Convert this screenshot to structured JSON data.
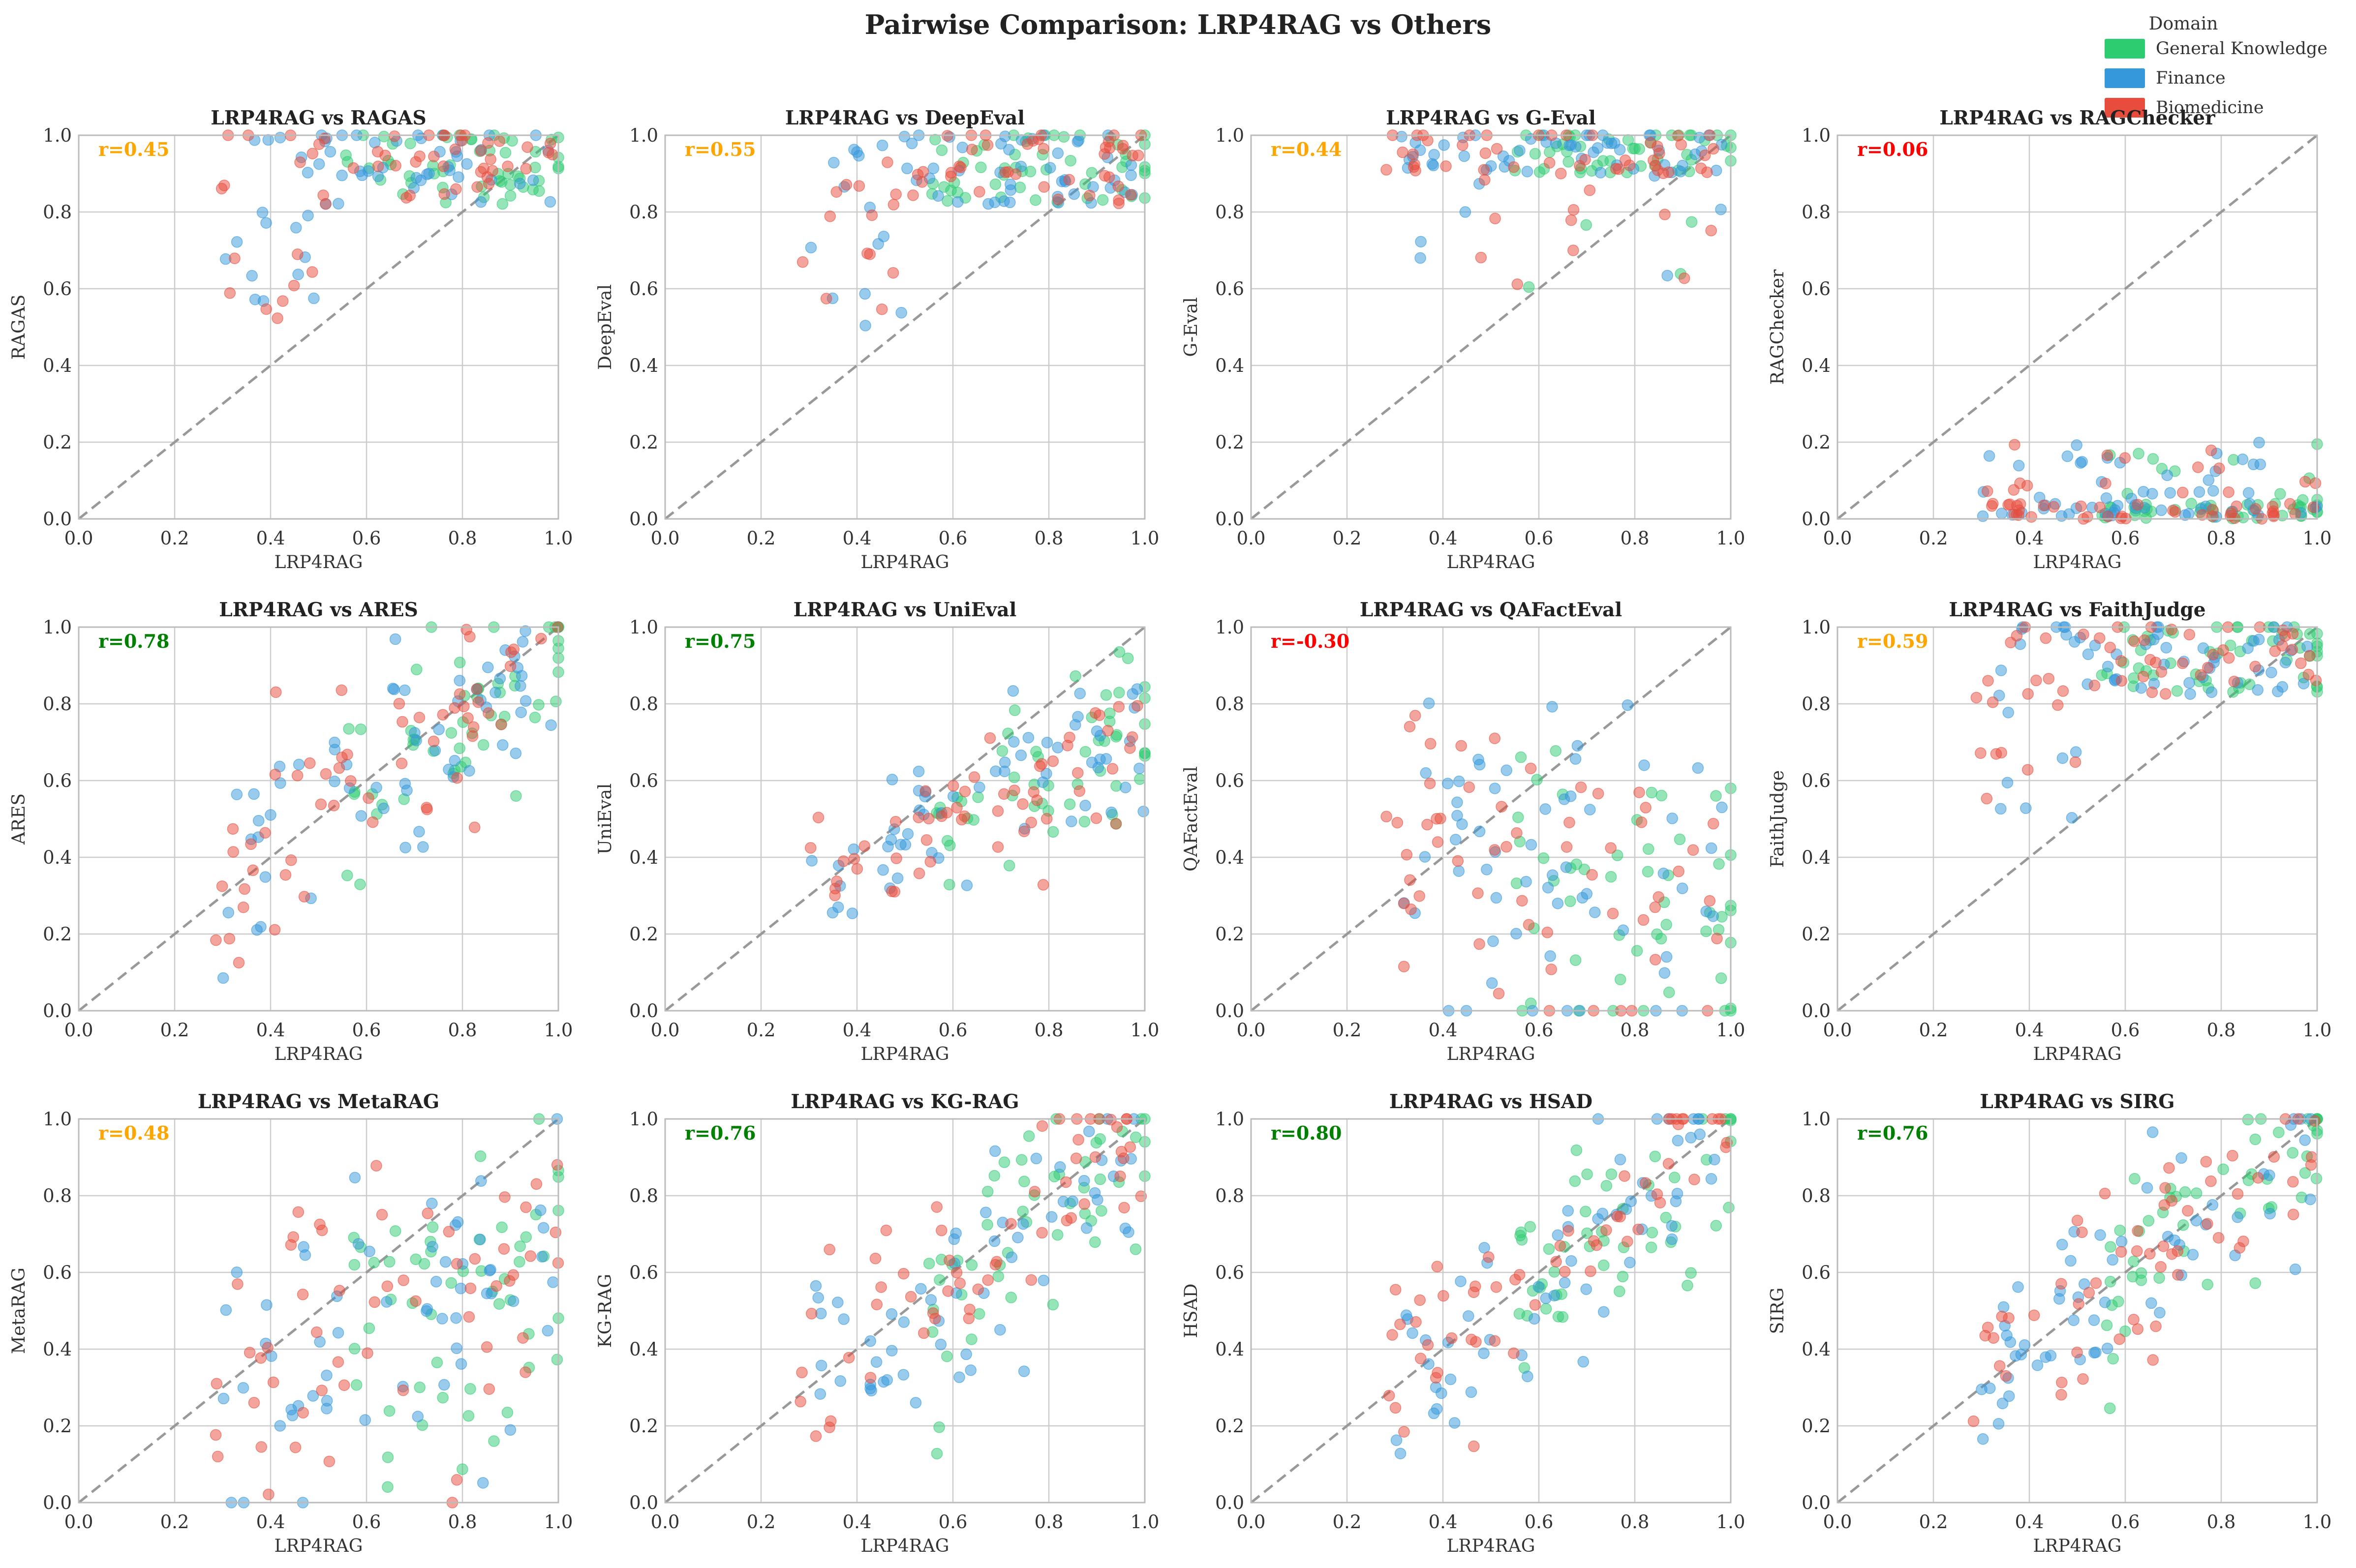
{
  "title": "Pairwise Comparison: LRP4RAG vs Others",
  "legend": {
    "title": "Domain",
    "items": [
      {
        "label": "General Knowledge",
        "color": "#2ecc71"
      },
      {
        "label": "Finance",
        "color": "#3498db"
      },
      {
        "label": "Biomedicine",
        "color": "#e74c3c"
      }
    ]
  },
  "colors": {
    "diagonal": "#999999",
    "grid": "#cccccc",
    "corr_high": "#008000",
    "corr_mid": "#ffa500",
    "corr_low": "#ff0000"
  },
  "chart_data": [
    {
      "type": "scatter",
      "title": "LRP4RAG vs RAGAS",
      "xlabel": "LRP4RAG",
      "ylabel": "RAGAS",
      "r_label": "r=0.45",
      "r": 0.45,
      "xlim": [
        0,
        1
      ],
      "ylim": [
        0,
        1
      ],
      "xticks": [
        "0.0",
        "0.2",
        "0.4",
        "0.6",
        "0.8",
        "1.0"
      ],
      "yticks": [
        "0.0",
        "0.2",
        "0.4",
        "0.6",
        "0.8",
        "1.0"
      ],
      "pattern": "high"
    },
    {
      "type": "scatter",
      "title": "LRP4RAG vs DeepEval",
      "xlabel": "LRP4RAG",
      "ylabel": "DeepEval",
      "r_label": "r=0.55",
      "r": 0.55,
      "xlim": [
        0,
        1
      ],
      "ylim": [
        0,
        1
      ],
      "xticks": [
        "0.0",
        "0.2",
        "0.4",
        "0.6",
        "0.8",
        "1.0"
      ],
      "yticks": [
        "0.0",
        "0.2",
        "0.4",
        "0.6",
        "0.8",
        "1.0"
      ],
      "pattern": "high"
    },
    {
      "type": "scatter",
      "title": "LRP4RAG vs G-Eval",
      "xlabel": "LRP4RAG",
      "ylabel": "G-Eval",
      "r_label": "r=0.44",
      "r": 0.44,
      "xlim": [
        0,
        1
      ],
      "ylim": [
        0,
        1
      ],
      "xticks": [
        "0.0",
        "0.2",
        "0.4",
        "0.6",
        "0.8",
        "1.0"
      ],
      "yticks": [
        "0.0",
        "0.2",
        "0.4",
        "0.6",
        "0.8",
        "1.0"
      ],
      "pattern": "veryhigh"
    },
    {
      "type": "scatter",
      "title": "LRP4RAG vs RAGChecker",
      "xlabel": "LRP4RAG",
      "ylabel": "RAGChecker",
      "r_label": "r=0.06",
      "r": 0.06,
      "xlim": [
        0,
        1
      ],
      "ylim": [
        0,
        1
      ],
      "xticks": [
        "0.0",
        "0.2",
        "0.4",
        "0.6",
        "0.8",
        "1.0"
      ],
      "yticks": [
        "0.0",
        "0.2",
        "0.4",
        "0.6",
        "0.8",
        "1.0"
      ],
      "pattern": "low"
    },
    {
      "type": "scatter",
      "title": "LRP4RAG vs ARES",
      "xlabel": "LRP4RAG",
      "ylabel": "ARES",
      "r_label": "r=0.78",
      "r": 0.78,
      "xlim": [
        0,
        1
      ],
      "ylim": [
        0,
        1
      ],
      "xticks": [
        "0.0",
        "0.2",
        "0.4",
        "0.6",
        "0.8",
        "1.0"
      ],
      "yticks": [
        "0.0",
        "0.2",
        "0.4",
        "0.6",
        "0.8",
        "1.0"
      ],
      "pattern": "corr"
    },
    {
      "type": "scatter",
      "title": "LRP4RAG vs UniEval",
      "xlabel": "LRP4RAG",
      "ylabel": "UniEval",
      "r_label": "r=0.75",
      "r": 0.75,
      "xlim": [
        0,
        1
      ],
      "ylim": [
        0,
        1
      ],
      "xticks": [
        "0.0",
        "0.2",
        "0.4",
        "0.6",
        "0.8",
        "1.0"
      ],
      "yticks": [
        "0.0",
        "0.2",
        "0.4",
        "0.6",
        "0.8",
        "1.0"
      ],
      "pattern": "corrlow"
    },
    {
      "type": "scatter",
      "title": "LRP4RAG vs QAFactEval",
      "xlabel": "LRP4RAG",
      "ylabel": "QAFactEval",
      "r_label": "r=-0.30",
      "r": -0.3,
      "xlim": [
        0,
        1
      ],
      "ylim": [
        0,
        1
      ],
      "xticks": [
        "0.0",
        "0.2",
        "0.4",
        "0.6",
        "0.8",
        "1.0"
      ],
      "yticks": [
        "0.0",
        "0.2",
        "0.4",
        "0.6",
        "0.8",
        "1.0"
      ],
      "pattern": "neg"
    },
    {
      "type": "scatter",
      "title": "LRP4RAG vs FaithJudge",
      "xlabel": "LRP4RAG",
      "ylabel": "FaithJudge",
      "r_label": "r=0.59",
      "r": 0.59,
      "xlim": [
        0,
        1
      ],
      "ylim": [
        0,
        1
      ],
      "xticks": [
        "0.0",
        "0.2",
        "0.4",
        "0.6",
        "0.8",
        "1.0"
      ],
      "yticks": [
        "0.0",
        "0.2",
        "0.4",
        "0.6",
        "0.8",
        "1.0"
      ],
      "pattern": "high"
    },
    {
      "type": "scatter",
      "title": "LRP4RAG vs MetaRAG",
      "xlabel": "LRP4RAG",
      "ylabel": "MetaRAG",
      "r_label": "r=0.48",
      "r": 0.48,
      "xlim": [
        0,
        1
      ],
      "ylim": [
        0,
        1
      ],
      "xticks": [
        "0.0",
        "0.2",
        "0.4",
        "0.6",
        "0.8",
        "1.0"
      ],
      "yticks": [
        "0.0",
        "0.2",
        "0.4",
        "0.6",
        "0.8",
        "1.0"
      ],
      "pattern": "spread"
    },
    {
      "type": "scatter",
      "title": "LRP4RAG vs KG-RAG",
      "xlabel": "LRP4RAG",
      "ylabel": "KG-RAG",
      "r_label": "r=0.76",
      "r": 0.76,
      "xlim": [
        0,
        1
      ],
      "ylim": [
        0,
        1
      ],
      "xticks": [
        "0.0",
        "0.2",
        "0.4",
        "0.6",
        "0.8",
        "1.0"
      ],
      "yticks": [
        "0.0",
        "0.2",
        "0.4",
        "0.6",
        "0.8",
        "1.0"
      ],
      "pattern": "corr"
    },
    {
      "type": "scatter",
      "title": "LRP4RAG vs HSAD",
      "xlabel": "LRP4RAG",
      "ylabel": "HSAD",
      "r_label": "r=0.80",
      "r": 0.8,
      "xlim": [
        0,
        1
      ],
      "ylim": [
        0,
        1
      ],
      "xticks": [
        "0.0",
        "0.2",
        "0.4",
        "0.6",
        "0.8",
        "1.0"
      ],
      "yticks": [
        "0.0",
        "0.2",
        "0.4",
        "0.6",
        "0.8",
        "1.0"
      ],
      "pattern": "corr"
    },
    {
      "type": "scatter",
      "title": "LRP4RAG vs SIRG",
      "xlabel": "LRP4RAG",
      "ylabel": "SIRG",
      "r_label": "r=0.76",
      "r": 0.76,
      "xlim": [
        0,
        1
      ],
      "ylim": [
        0,
        1
      ],
      "xticks": [
        "0.0",
        "0.2",
        "0.4",
        "0.6",
        "0.8",
        "1.0"
      ],
      "yticks": [
        "0.0",
        "0.2",
        "0.4",
        "0.6",
        "0.8",
        "1.0"
      ],
      "pattern": "corr"
    }
  ]
}
